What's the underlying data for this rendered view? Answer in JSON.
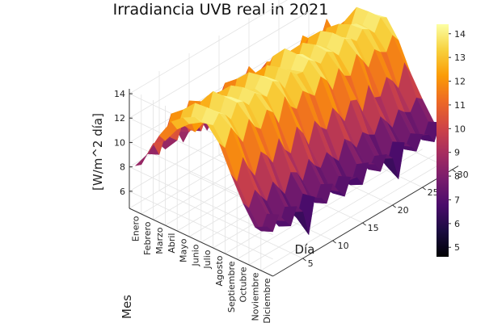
{
  "chart_data": {
    "type": "surface",
    "title": "Irradiancia UVB real in 2021",
    "zlabel": "[W/m^2 día]",
    "xlabel": "Día",
    "ylabel": "Mes",
    "x_ticks": [
      "5",
      "10",
      "15",
      "20",
      "25",
      "30"
    ],
    "z_ticks": [
      "6",
      "8",
      "10",
      "12",
      "14"
    ],
    "months": [
      "Enero",
      "Febrero",
      "Marzo",
      "Abril",
      "Mayo",
      "Junio",
      "Julio",
      "Agosto",
      "Septiembre",
      "Octubre",
      "Noviembre",
      "Diciembre"
    ],
    "zlim": [
      4.6,
      14.4
    ],
    "colorbar": {
      "ticks": [
        "5",
        "6",
        "7",
        "8",
        "9",
        "10",
        "11",
        "12",
        "13",
        "14"
      ],
      "range": [
        4.6,
        14.4
      ]
    },
    "colormap": [
      "#000004",
      "#1b0c41",
      "#4a0c6b",
      "#781c6d",
      "#a52c60",
      "#cf4446",
      "#ed6925",
      "#fb9b06",
      "#f7d13d",
      "#fcffa4"
    ],
    "series": [
      {
        "month": "Enero",
        "values": [
          7.8,
          7.6,
          8.2,
          7.9,
          8.4,
          7.7,
          8.0,
          8.6,
          7.4,
          8.1,
          7.9,
          8.3,
          7.2,
          7.8,
          8.5,
          7.6,
          8.0,
          7.9,
          8.2,
          7.5,
          8.1,
          8.4,
          7.7,
          8.0,
          7.9,
          8.3,
          7.6,
          8.1,
          7.8,
          8.0,
          8.2
        ]
      },
      {
        "month": "Febrero",
        "values": [
          9.2,
          9.8,
          8.6,
          10.1,
          9.4,
          8.9,
          10.4,
          9.0,
          9.7,
          8.5,
          10.2,
          9.3,
          9.9,
          8.8,
          10.0,
          9.5,
          8.7,
          9.6,
          10.3,
          9.1,
          8.9,
          9.8,
          9.4,
          10.1,
          8.6,
          9.7,
          9.2,
          9.9,
          9.0,
          9.5,
          9.3
        ]
      },
      {
        "month": "Marzo",
        "values": [
          11.2,
          10.5,
          12.4,
          11.8,
          10.9,
          12.6,
          11.4,
          10.7,
          12.1,
          11.6,
          10.3,
          12.3,
          11.1,
          11.9,
          10.6,
          12.5,
          11.3,
          10.8,
          12.0,
          11.5,
          10.4,
          12.2,
          11.7,
          11.0,
          12.4,
          10.9,
          11.8,
          11.2,
          12.6,
          11.4,
          11.1
        ]
      },
      {
        "month": "Abril",
        "values": [
          12.8,
          11.9,
          13.2,
          12.4,
          10.8,
          13.0,
          12.1,
          11.5,
          12.9,
          12.6,
          11.2,
          13.1,
          12.3,
          10.6,
          12.7,
          12.0,
          11.8,
          13.2,
          12.5,
          11.4,
          12.8,
          12.2,
          11.0,
          13.0,
          12.4,
          11.7,
          12.9,
          12.1,
          11.3,
          12.6,
          12.3
        ]
      },
      {
        "month": "Mayo",
        "values": [
          13.6,
          12.8,
          14.2,
          13.1,
          12.4,
          14.3,
          13.7,
          12.9,
          13.9,
          13.3,
          12.6,
          14.1,
          13.5,
          12.2,
          13.8,
          13.0,
          12.7,
          14.3,
          13.4,
          12.5,
          13.9,
          13.2,
          12.8,
          14.0,
          13.6,
          12.3,
          13.7,
          13.1,
          12.9,
          14.2,
          13.5
        ]
      },
      {
        "month": "Junio",
        "values": [
          14.1,
          13.4,
          14.3,
          13.8,
          13.0,
          14.3,
          14.0,
          13.2,
          14.2,
          13.7,
          13.5,
          14.3,
          13.9,
          12.9,
          14.1,
          13.6,
          13.3,
          14.3,
          14.0,
          13.1,
          14.2,
          13.8,
          13.4,
          14.3,
          13.7,
          13.0,
          14.1,
          13.9,
          13.5,
          14.3,
          13.8
        ]
      },
      {
        "month": "Julio",
        "values": [
          14.0,
          13.6,
          14.3,
          13.9,
          13.2,
          14.3,
          14.1,
          13.5,
          14.2,
          13.8,
          13.3,
          14.3,
          14.0,
          13.1,
          14.2,
          13.7,
          13.6,
          14.3,
          13.9,
          13.4,
          14.1,
          13.8,
          13.2,
          14.3,
          14.0,
          13.5,
          14.2,
          13.9,
          13.3,
          14.3,
          14.0
        ]
      },
      {
        "month": "Agosto",
        "values": [
          12.9,
          12.2,
          13.6,
          12.7,
          11.8,
          13.4,
          12.5,
          12.0,
          13.3,
          12.8,
          11.6,
          13.5,
          12.4,
          11.9,
          13.1,
          12.6,
          12.1,
          13.4,
          12.8,
          11.7,
          13.2,
          12.3,
          12.0,
          13.5,
          12.7,
          11.8,
          13.0,
          12.5,
          12.2,
          13.3,
          12.6
        ]
      },
      {
        "month": "Septiembre",
        "values": [
          10.8,
          9.9,
          11.6,
          10.4,
          9.5,
          11.2,
          10.6,
          9.7,
          11.4,
          10.2,
          9.6,
          11.5,
          10.7,
          9.4,
          11.1,
          10.3,
          9.8,
          11.3,
          10.5,
          9.6,
          11.0,
          10.8,
          9.5,
          11.4,
          10.1,
          9.9,
          11.2,
          10.6,
          9.7,
          11.5,
          10.4
        ]
      },
      {
        "month": "Octubre",
        "values": [
          8.9,
          8.2,
          9.4,
          8.6,
          7.9,
          9.2,
          8.4,
          7.6,
          9.1,
          8.8,
          7.8,
          9.3,
          8.5,
          8.0,
          9.0,
          8.3,
          7.7,
          9.2,
          8.7,
          7.9,
          8.9,
          8.4,
          8.1,
          9.3,
          8.6,
          7.8,
          9.0,
          8.5,
          8.2,
          9.1,
          8.7
        ]
      },
      {
        "month": "Noviembre",
        "values": [
          7.4,
          6.8,
          7.9,
          7.1,
          6.3,
          7.6,
          6.9,
          6.1,
          7.8,
          7.2,
          6.5,
          7.7,
          7.0,
          6.4,
          7.5,
          6.7,
          6.2,
          7.6,
          7.3,
          6.6,
          7.4,
          6.9,
          6.0,
          7.7,
          7.1,
          6.5,
          7.5,
          7.0,
          6.4,
          7.6,
          7.2
        ]
      },
      {
        "month": "Diciembre",
        "values": [
          7.9,
          7.2,
          8.3,
          7.5,
          6.8,
          8.1,
          7.4,
          5.2,
          8.0,
          7.7,
          6.9,
          8.2,
          7.3,
          6.6,
          7.9,
          7.6,
          6.7,
          8.2,
          7.8,
          6.9,
          8.0,
          7.4,
          5.4,
          8.1,
          7.5,
          6.8,
          7.9,
          7.6,
          6.7,
          8.0,
          7.7
        ]
      }
    ]
  }
}
